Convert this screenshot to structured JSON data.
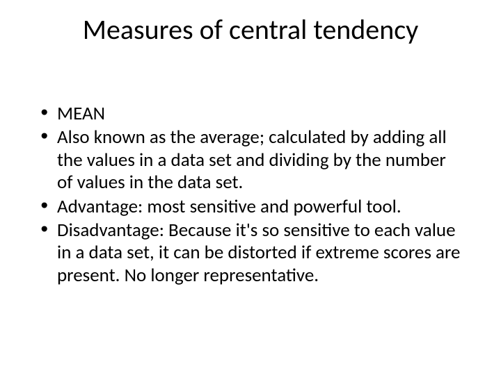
{
  "title": "Measures of central tendency",
  "bullets": [
    "MEAN",
    "Also known as the average; calculated by adding all the values in a data set and dividing by the number of values in the data set.",
    "Advantage: most sensitive and powerful tool.",
    "Disadvantage: Because it's so sensitive to each value in a data set, it can be distorted if extreme scores are present. No longer representative."
  ],
  "colors": {
    "background": "#ffffff",
    "text": "#000000"
  },
  "typography": {
    "title_fontsize": 40,
    "body_fontsize": 27,
    "font_family": "Calibri"
  }
}
